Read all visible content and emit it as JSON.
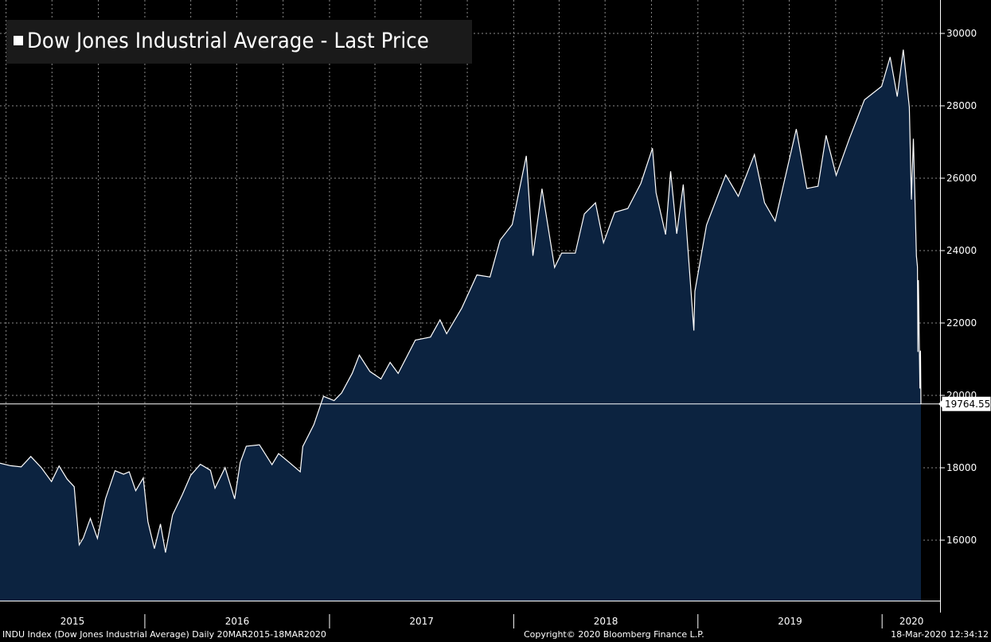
{
  "chart_data": {
    "type": "area",
    "title": "Dow Jones Industrial Average - Last Price",
    "y_ticks": [
      16000,
      18000,
      20000,
      22000,
      24000,
      26000,
      28000,
      30000
    ],
    "x_year_labels": [
      "2015",
      "2016",
      "2017",
      "2018",
      "2019",
      "2020"
    ],
    "ylim": [
      14500,
      30800
    ],
    "last_value_label": "19764.55",
    "last_value": 19764.55,
    "grid": true,
    "colors": {
      "fill": "#0c2340",
      "line": "#ffffff",
      "grid": "#8a8a8a",
      "background": "#000000"
    },
    "series": [
      {
        "points": [
          [
            "2015-03-20",
            18127
          ],
          [
            "2015-04-10",
            18057
          ],
          [
            "2015-05-01",
            18024
          ],
          [
            "2015-05-20",
            18312
          ],
          [
            "2015-06-10",
            18000
          ],
          [
            "2015-06-30",
            17620
          ],
          [
            "2015-07-15",
            18050
          ],
          [
            "2015-07-31",
            17689
          ],
          [
            "2015-08-14",
            17477
          ],
          [
            "2015-08-24",
            15871
          ],
          [
            "2015-09-01",
            16058
          ],
          [
            "2015-09-15",
            16600
          ],
          [
            "2015-09-29",
            16049
          ],
          [
            "2015-10-15",
            17141
          ],
          [
            "2015-11-03",
            17918
          ],
          [
            "2015-11-20",
            17823
          ],
          [
            "2015-12-01",
            17888
          ],
          [
            "2015-12-14",
            17368
          ],
          [
            "2015-12-29",
            17720
          ],
          [
            "2016-01-07",
            16514
          ],
          [
            "2016-01-20",
            15766
          ],
          [
            "2016-02-01",
            16449
          ],
          [
            "2016-02-11",
            15660
          ],
          [
            "2016-02-25",
            16697
          ],
          [
            "2016-03-15",
            17251
          ],
          [
            "2016-04-01",
            17792
          ],
          [
            "2016-04-20",
            18096
          ],
          [
            "2016-05-10",
            17929
          ],
          [
            "2016-05-19",
            17436
          ],
          [
            "2016-06-08",
            18005
          ],
          [
            "2016-06-27",
            17140
          ],
          [
            "2016-07-08",
            18146
          ],
          [
            "2016-07-20",
            18595
          ],
          [
            "2016-08-15",
            18636
          ],
          [
            "2016-09-09",
            18085
          ],
          [
            "2016-09-22",
            18392
          ],
          [
            "2016-10-14",
            18138
          ],
          [
            "2016-11-04",
            17888
          ],
          [
            "2016-11-09",
            18589
          ],
          [
            "2016-12-01",
            19191
          ],
          [
            "2016-12-20",
            19974
          ],
          [
            "2017-01-10",
            19855
          ],
          [
            "2017-01-25",
            20068
          ],
          [
            "2017-02-15",
            20611
          ],
          [
            "2017-03-01",
            21115
          ],
          [
            "2017-03-22",
            20661
          ],
          [
            "2017-04-13",
            20453
          ],
          [
            "2017-05-01",
            20913
          ],
          [
            "2017-05-17",
            20606
          ],
          [
            "2017-06-20",
            21528
          ],
          [
            "2017-07-20",
            21611
          ],
          [
            "2017-08-08",
            22085
          ],
          [
            "2017-08-21",
            21703
          ],
          [
            "2017-09-20",
            22412
          ],
          [
            "2017-10-20",
            23328
          ],
          [
            "2017-11-15",
            23271
          ],
          [
            "2017-12-05",
            24290
          ],
          [
            "2017-12-29",
            24719
          ],
          [
            "2018-01-26",
            26617
          ],
          [
            "2018-02-08",
            23860
          ],
          [
            "2018-02-26",
            25709
          ],
          [
            "2018-03-23",
            23533
          ],
          [
            "2018-04-06",
            23932
          ],
          [
            "2018-05-03",
            23930
          ],
          [
            "2018-05-21",
            25013
          ],
          [
            "2018-06-12",
            25320
          ],
          [
            "2018-06-28",
            24216
          ],
          [
            "2018-07-20",
            25058
          ],
          [
            "2018-08-15",
            25162
          ],
          [
            "2018-09-10",
            25857
          ],
          [
            "2018-10-03",
            26828
          ],
          [
            "2018-10-10",
            25599
          ],
          [
            "2018-10-29",
            24443
          ],
          [
            "2018-11-08",
            26191
          ],
          [
            "2018-11-20",
            24465
          ],
          [
            "2018-12-03",
            25826
          ],
          [
            "2018-12-24",
            21792
          ],
          [
            "2018-12-26",
            22878
          ],
          [
            "2019-01-18",
            24706
          ],
          [
            "2019-02-25",
            26091
          ],
          [
            "2019-03-22",
            25502
          ],
          [
            "2019-04-23",
            26656
          ],
          [
            "2019-05-13",
            25324
          ],
          [
            "2019-06-03",
            24815
          ],
          [
            "2019-07-15",
            27359
          ],
          [
            "2019-08-05",
            25717
          ],
          [
            "2019-08-27",
            25778
          ],
          [
            "2019-09-12",
            27182
          ],
          [
            "2019-10-02",
            26078
          ],
          [
            "2019-10-28",
            27090
          ],
          [
            "2019-11-27",
            28164
          ],
          [
            "2019-12-31",
            28538
          ],
          [
            "2020-01-17",
            29348
          ],
          [
            "2020-01-31",
            28256
          ],
          [
            "2020-02-12",
            29551
          ],
          [
            "2020-02-24",
            27960
          ],
          [
            "2020-02-28",
            25409
          ],
          [
            "2020-03-03",
            27090
          ],
          [
            "2020-03-09",
            23851
          ],
          [
            "2020-03-11",
            23553
          ],
          [
            "2020-03-12",
            21200
          ],
          [
            "2020-03-13",
            23185
          ],
          [
            "2020-03-16",
            20188
          ],
          [
            "2020-03-17",
            21237
          ],
          [
            "2020-03-18",
            19764.55
          ]
        ]
      }
    ]
  },
  "footer": {
    "left": "INDU Index (Dow Jones Industrial Average)  Daily 20MAR2015-18MAR2020",
    "center": "Copyright© 2020 Bloomberg Finance L.P.",
    "right": "18-Mar-2020 12:34:12"
  }
}
